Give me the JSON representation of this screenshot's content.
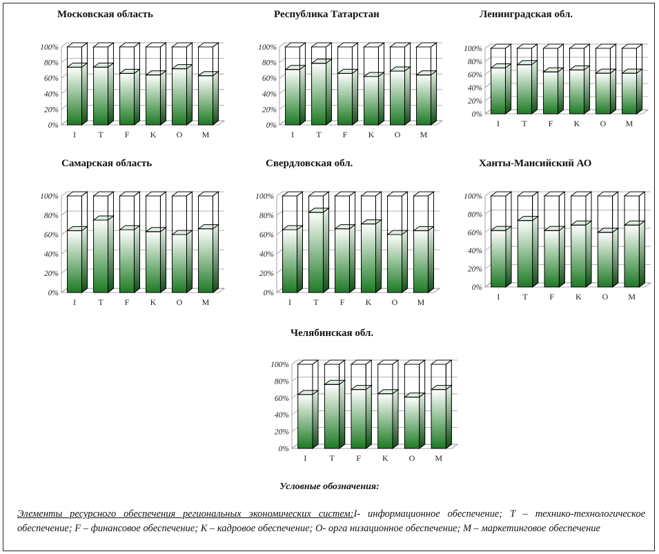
{
  "colors": {
    "bar_top": "#ffffff",
    "bar_bottom": "#1d7a24",
    "outline": "#000000"
  },
  "chart_data": [
    {
      "type": "bar",
      "title": "Московская область",
      "categories": [
        "I",
        "T",
        "F",
        "K",
        "O",
        "M"
      ],
      "values": [
        74,
        74,
        66,
        64,
        72,
        63
      ],
      "ylim": [
        0,
        100
      ],
      "ytick_labels": [
        "0%",
        "20%",
        "40%",
        "60%",
        "80%",
        "100%"
      ],
      "grid": true
    },
    {
      "type": "bar",
      "title": "Республика Татарстан",
      "categories": [
        "I",
        "T",
        "F",
        "K",
        "O",
        "M"
      ],
      "values": [
        71,
        79,
        66,
        62,
        69,
        64
      ],
      "ylim": [
        0,
        100
      ],
      "ytick_labels": [
        "0%",
        "20%",
        "40%",
        "60%",
        "80%",
        "100%"
      ],
      "grid": true
    },
    {
      "type": "bar",
      "title": "Ленинградская обл.",
      "categories": [
        "I",
        "T",
        "F",
        "K",
        "O",
        "M"
      ],
      "values": [
        70,
        75,
        64,
        67,
        62,
        62
      ],
      "ylim": [
        0,
        100
      ],
      "ytick_labels": [
        "0%",
        "20%",
        "40%",
        "60%",
        "80%",
        "100%"
      ],
      "grid": true
    },
    {
      "type": "bar",
      "title": "Самарская область",
      "categories": [
        "I",
        "T",
        "F",
        "K",
        "O",
        "M"
      ],
      "values": [
        64,
        75,
        65,
        63,
        60,
        66
      ],
      "ylim": [
        0,
        100
      ],
      "ytick_labels": [
        "0%",
        "20%",
        "40%",
        "60%",
        "80%",
        "100%"
      ],
      "grid": true
    },
    {
      "type": "bar",
      "title": "Свердловская обл.",
      "categories": [
        "I",
        "T",
        "F",
        "K",
        "O",
        "M"
      ],
      "values": [
        65,
        83,
        66,
        71,
        60,
        64
      ],
      "ylim": [
        0,
        100
      ],
      "ytick_labels": [
        "0%",
        "20%",
        "40%",
        "60%",
        "80%",
        "100%"
      ],
      "grid": true
    },
    {
      "type": "bar",
      "title": "Ханты-Мансийский АО",
      "categories": [
        "I",
        "T",
        "F",
        "K",
        "O",
        "M"
      ],
      "values": [
        62,
        73,
        62,
        68,
        60,
        68
      ],
      "ylim": [
        0,
        100
      ],
      "ytick_labels": [
        "0%",
        "20%",
        "40%",
        "60%",
        "80%",
        "100%"
      ],
      "grid": true
    },
    {
      "type": "bar",
      "title": "Челябинская обл.",
      "categories": [
        "I",
        "T",
        "F",
        "K",
        "O",
        "M"
      ],
      "values": [
        64,
        76,
        70,
        65,
        61,
        70
      ],
      "ylim": [
        0,
        100
      ],
      "ytick_labels": [
        "0%",
        "20%",
        "40%",
        "60%",
        "80%",
        "100%"
      ],
      "grid": true
    }
  ],
  "legend": {
    "title": "Условные обозначения:",
    "heading": "Элементы ресурсного обеспечения региональных экономических систем:",
    "text": "I- информационное обеспечение; T – технико-технологическое обеспечение; F – финансовое обеспечение; K – кадровое обеспечение; O- орга низационное обеспечение; M – маркетинговое обеспечение"
  }
}
